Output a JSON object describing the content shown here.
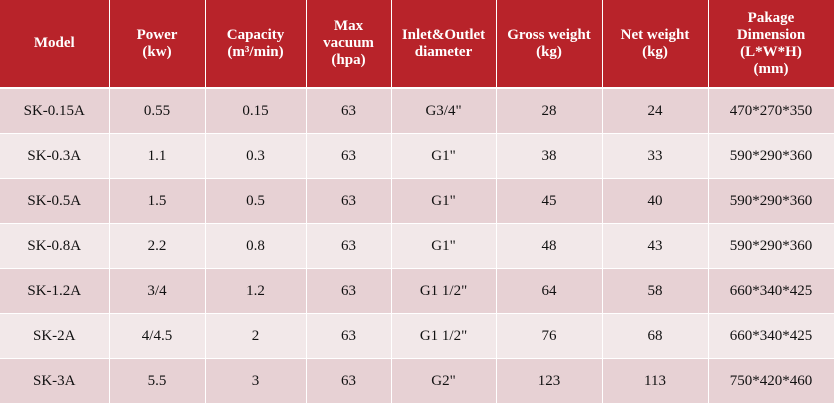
{
  "table": {
    "headers": [
      [
        "Model"
      ],
      [
        "Power",
        "(kw)"
      ],
      [
        "Capacity",
        "(m³/min)"
      ],
      [
        "Max",
        "vacuum",
        "(hpa)"
      ],
      [
        "Inlet&Outlet",
        "diameter"
      ],
      [
        "Gross weight",
        "(kg)"
      ],
      [
        "Net weight",
        "(kg)"
      ],
      [
        "Pakage",
        "Dimension",
        "(L*W*H)",
        "(mm)"
      ]
    ],
    "rows": [
      [
        "SK-0.15A",
        "0.55",
        "0.15",
        "63",
        "G3/4\"",
        "28",
        "24",
        "470*270*350"
      ],
      [
        "SK-0.3A",
        "1.1",
        "0.3",
        "63",
        "G1\"",
        "38",
        "33",
        "590*290*360"
      ],
      [
        "SK-0.5A",
        "1.5",
        "0.5",
        "63",
        "G1\"",
        "45",
        "40",
        "590*290*360"
      ],
      [
        "SK-0.8A",
        "2.2",
        "0.8",
        "63",
        "G1\"",
        "48",
        "43",
        "590*290*360"
      ],
      [
        "SK-1.2A",
        "3/4",
        "1.2",
        "63",
        "G1 1/2\"",
        "64",
        "58",
        "660*340*425"
      ],
      [
        "SK-2A",
        "4/4.5",
        "2",
        "63",
        "G1 1/2\"",
        "76",
        "68",
        "660*340*425"
      ],
      [
        "SK-3A",
        "5.5",
        "3",
        "63",
        "G2\"",
        "123",
        "113",
        "750*420*460"
      ]
    ]
  },
  "colors": {
    "header_bg": "#b8232a",
    "row_odd_bg": "#e7d1d4",
    "row_even_bg": "#f2e8e9"
  }
}
